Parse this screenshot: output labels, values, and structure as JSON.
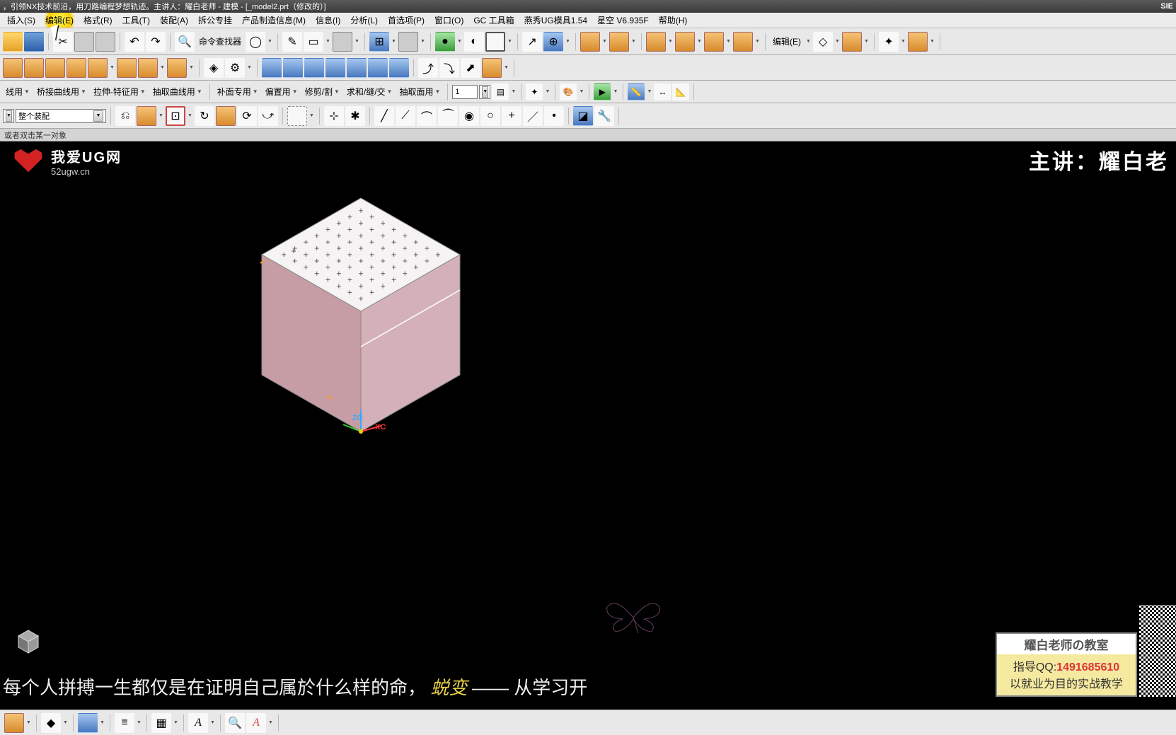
{
  "title_bar": {
    "text": "，引领NX技术前沿，用刀路编程梦想轨迹。主讲人：耀白老师 - 建模 - [_model2.prt（修改的）]",
    "right": "SIE"
  },
  "menus": [
    {
      "label": "插入(S)",
      "hl": false
    },
    {
      "label": "编辑(E)",
      "hl": true
    },
    {
      "label": "格式(R)",
      "hl": false
    },
    {
      "label": "工具(T)",
      "hl": false
    },
    {
      "label": "装配(A)",
      "hl": false
    },
    {
      "label": "拆公专挂",
      "hl": false
    },
    {
      "label": "产品制造信息(M)",
      "hl": false
    },
    {
      "label": "信息(I)",
      "hl": false
    },
    {
      "label": "分析(L)",
      "hl": false
    },
    {
      "label": "首选项(P)",
      "hl": false
    },
    {
      "label": "窗口(O)",
      "hl": false
    },
    {
      "label": "GC 工具箱",
      "hl": false
    },
    {
      "label": "燕秀UG模具1.54",
      "hl": false
    },
    {
      "label": "星空 V6.935F",
      "hl": false
    },
    {
      "label": "帮助(H)",
      "hl": false
    }
  ],
  "row1": {
    "command_finder": "命令查找器",
    "edit_label": "编辑(E)"
  },
  "row3_items": [
    "线用",
    "桥接曲线用",
    "拉伸-特征用",
    "抽取曲线用",
    "补面专用",
    "偏置用",
    "修剪/割",
    "求和/缝/交",
    "抽取面用"
  ],
  "spin_value": "1",
  "row4": {
    "combo_value": "整个装配"
  },
  "status_text": "或者双击某一对象",
  "watermark": {
    "line1": "我爱UG网",
    "line2": "52ugw.cn"
  },
  "watermark_tr": "主讲：耀白老",
  "axes": {
    "zc": "ZC",
    "xc": "XC"
  },
  "bottom_text_1": "每个人拼搏一生都仅是在证明自己属於什么样的命，",
  "bottom_text_accent": "蜕变",
  "bottom_text_2": "—— 从学习开",
  "info_box": {
    "header": "耀白老师の教室",
    "qq_label": "指导QQ:",
    "qq": "1491685610",
    "line2": "以就业为目的实战教学"
  },
  "cube_style": {
    "top_face_color": "#f5f3f3",
    "left_face_color": "#c79da5",
    "right_face_color": "#d4b0b8",
    "edge_color": "#888888",
    "point_pattern_color": "#555555",
    "highlight_edge_color": "#ffffff"
  }
}
